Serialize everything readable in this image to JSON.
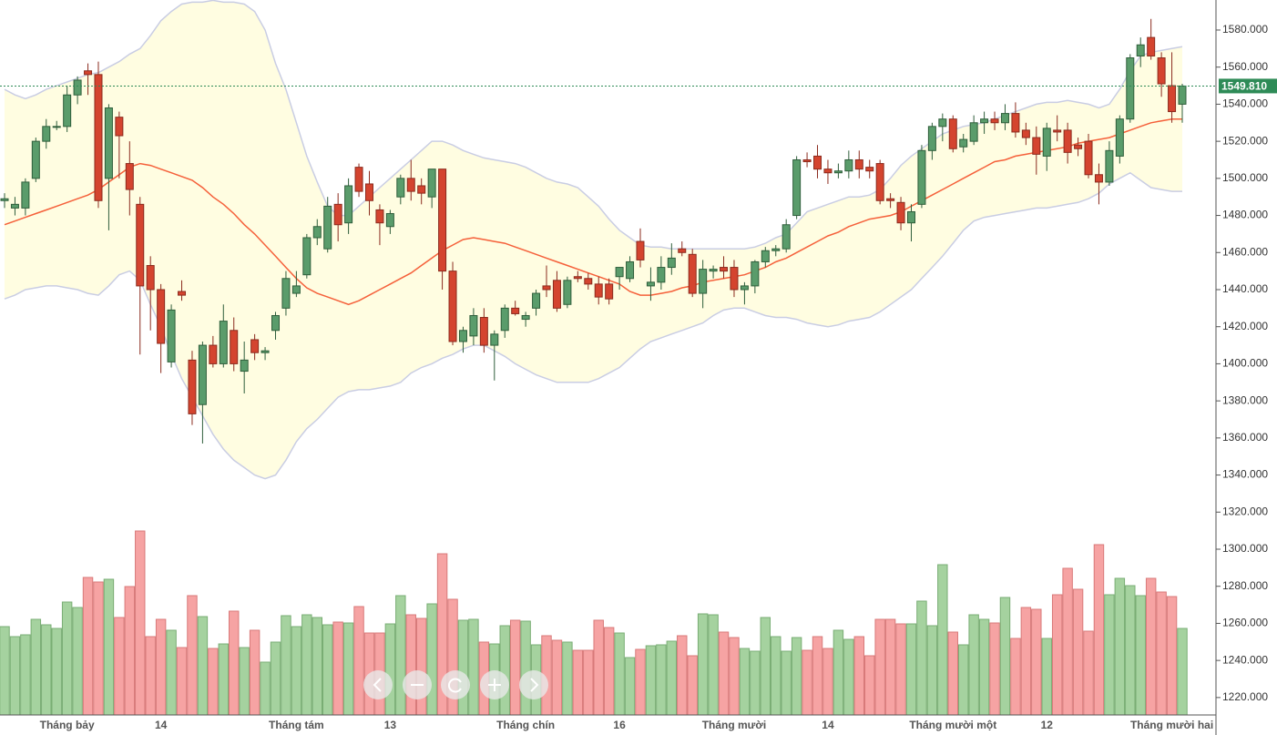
{
  "chart_data": {
    "type": "candlestick",
    "categories": [
      null,
      null,
      null,
      null,
      null,
      null,
      "Tháng bảy",
      null,
      null,
      null,
      null,
      null,
      null,
      null,
      null,
      "14",
      null,
      null,
      null,
      null,
      null,
      null,
      null,
      null,
      null,
      null,
      null,
      null,
      "Tháng tám",
      null,
      null,
      null,
      null,
      null,
      null,
      null,
      null,
      "13",
      null,
      null,
      null,
      null,
      null,
      null,
      null,
      null,
      null,
      null,
      null,
      null,
      "Tháng chín",
      null,
      null,
      null,
      null,
      null,
      null,
      null,
      null,
      "16",
      null,
      null,
      null,
      null,
      null,
      null,
      null,
      null,
      null,
      null,
      "Tháng mười",
      null,
      null,
      null,
      null,
      null,
      null,
      null,
      null,
      "14",
      null,
      null,
      null,
      null,
      null,
      null,
      null,
      null,
      null,
      null,
      null,
      "Tháng mười một",
      null,
      null,
      null,
      null,
      null,
      null,
      null,
      null,
      "12",
      null,
      null,
      null,
      null,
      null,
      null,
      null,
      null,
      null,
      null,
      null,
      "Tháng mười hai",
      null
    ],
    "open": [
      1488,
      1484,
      1484,
      1500,
      1520,
      1528,
      1528,
      1545,
      1558,
      1556,
      1500,
      1533,
      1508,
      1486,
      1453,
      1440,
      1401,
      1439,
      1402,
      1378,
      1410,
      1400,
      1418,
      1396,
      1413,
      1406,
      1418,
      1430,
      1438,
      1448,
      1468,
      1462,
      1486,
      1476,
      1506,
      1497,
      1483,
      1474,
      1490,
      1500,
      1496,
      1490,
      1505,
      1450,
      1412,
      1415,
      1425,
      1410,
      1418,
      1430,
      1424,
      1430,
      1442,
      1445,
      1432,
      1447,
      1446,
      1443,
      1443,
      1447,
      1446,
      1466,
      1442,
      1444,
      1452,
      1462,
      1459,
      1438,
      1450,
      1452,
      1452,
      1440,
      1442,
      1455,
      1461,
      1462,
      1480,
      1510,
      1512,
      1505,
      1503,
      1504,
      1510,
      1506,
      1508,
      1489,
      1487,
      1476,
      1486,
      1515,
      1528,
      1532,
      1517,
      1520,
      1530,
      1532,
      1530,
      1535,
      1526,
      1522,
      1512,
      1526,
      1526,
      1518,
      1520,
      1502,
      1498,
      1512,
      1532,
      1566,
      1576,
      1565,
      1550,
      1540
    ],
    "high": [
      1492,
      1490,
      1500,
      1522,
      1532,
      1531,
      1550,
      1555,
      1562,
      1563,
      1540,
      1536,
      1520,
      1490,
      1458,
      1443,
      1432,
      1445,
      1407,
      1412,
      1415,
      1432,
      1425,
      1412,
      1416,
      1409,
      1428,
      1450,
      1450,
      1470,
      1478,
      1490,
      1492,
      1500,
      1508,
      1504,
      1486,
      1483,
      1502,
      1510,
      1500,
      1505,
      1505,
      1455,
      1420,
      1430,
      1430,
      1418,
      1432,
      1434,
      1428,
      1440,
      1453,
      1450,
      1447,
      1450,
      1449,
      1447,
      1446,
      1452,
      1458,
      1473,
      1452,
      1458,
      1465,
      1466,
      1462,
      1456,
      1453,
      1458,
      1456,
      1444,
      1456,
      1463,
      1464,
      1478,
      1512,
      1514,
      1518,
      1510,
      1508,
      1515,
      1515,
      1510,
      1510,
      1492,
      1490,
      1486,
      1518,
      1530,
      1535,
      1534,
      1524,
      1534,
      1536,
      1536,
      1540,
      1541,
      1530,
      1528,
      1530,
      1534,
      1530,
      1522,
      1524,
      1508,
      1520,
      1534,
      1567,
      1576,
      1586,
      1568,
      1568,
      1551
    ],
    "low": [
      1484,
      1480,
      1480,
      1498,
      1516,
      1526,
      1525,
      1540,
      1545,
      1484,
      1472,
      1500,
      1480,
      1405,
      1418,
      1395,
      1398,
      1434,
      1367,
      1357,
      1398,
      1398,
      1396,
      1384,
      1402,
      1402,
      1413,
      1426,
      1436,
      1446,
      1464,
      1460,
      1466,
      1470,
      1490,
      1480,
      1464,
      1470,
      1486,
      1488,
      1486,
      1484,
      1440,
      1410,
      1406,
      1410,
      1406,
      1391,
      1414,
      1426,
      1420,
      1426,
      1436,
      1428,
      1430,
      1444,
      1440,
      1432,
      1432,
      1440,
      1444,
      1452,
      1434,
      1440,
      1448,
      1458,
      1436,
      1430,
      1446,
      1446,
      1436,
      1432,
      1438,
      1452,
      1458,
      1460,
      1478,
      1506,
      1500,
      1497,
      1500,
      1500,
      1500,
      1500,
      1486,
      1484,
      1472,
      1466,
      1484,
      1510,
      1520,
      1514,
      1514,
      1518,
      1524,
      1526,
      1526,
      1522,
      1518,
      1502,
      1504,
      1520,
      1508,
      1512,
      1500,
      1486,
      1496,
      1508,
      1530,
      1560,
      1564,
      1544,
      1530,
      1530
    ],
    "close": [
      1489,
      1486,
      1498,
      1520,
      1528,
      1528,
      1545,
      1553,
      1556,
      1488,
      1538,
      1523,
      1494,
      1442,
      1440,
      1411,
      1429,
      1437,
      1373,
      1410,
      1400,
      1423,
      1400,
      1402,
      1406,
      1407,
      1426,
      1446,
      1442,
      1468,
      1474,
      1485,
      1475,
      1496,
      1493,
      1488,
      1476,
      1481,
      1500,
      1493,
      1492,
      1505,
      1450,
      1412,
      1418,
      1426,
      1410,
      1416,
      1430,
      1427,
      1426,
      1438,
      1440,
      1430,
      1445,
      1446,
      1443,
      1436,
      1435,
      1452,
      1455,
      1456,
      1444,
      1452,
      1457,
      1460,
      1438,
      1451,
      1451,
      1450,
      1440,
      1442,
      1455,
      1461,
      1462,
      1475,
      1510,
      1509,
      1505,
      1503,
      1504,
      1510,
      1505,
      1504,
      1488,
      1488,
      1476,
      1482,
      1515,
      1528,
      1532,
      1516,
      1521,
      1530,
      1532,
      1530,
      1535,
      1525,
      1522,
      1513,
      1527,
      1525,
      1514,
      1516,
      1502,
      1498,
      1515,
      1532,
      1565,
      1572,
      1566,
      1551,
      1536,
      1549.81
    ],
    "bands": {
      "upper": [
        1548,
        1545,
        1543,
        1545,
        1548,
        1550,
        1552,
        1554,
        1556,
        1557,
        1560,
        1563,
        1567,
        1570,
        1577,
        1585,
        1590,
        1594,
        1595,
        1595,
        1596,
        1595,
        1595,
        1594,
        1590,
        1580,
        1562,
        1548,
        1530,
        1512,
        1498,
        1485,
        1480,
        1480,
        1485,
        1490,
        1495,
        1500,
        1505,
        1510,
        1515,
        1520,
        1520,
        1518,
        1515,
        1513,
        1511,
        1510,
        1509,
        1508,
        1506,
        1503,
        1500,
        1498,
        1497,
        1495,
        1490,
        1485,
        1478,
        1472,
        1468,
        1464,
        1463,
        1463,
        1462,
        1462,
        1462,
        1462,
        1462,
        1462,
        1462,
        1462,
        1463,
        1465,
        1468,
        1470,
        1476,
        1482,
        1484,
        1486,
        1488,
        1490,
        1490,
        1491,
        1494,
        1500,
        1507,
        1512,
        1516,
        1520,
        1524,
        1526,
        1528,
        1529,
        1530,
        1532,
        1534,
        1536,
        1538,
        1540,
        1541,
        1541,
        1542,
        1541,
        1540,
        1538,
        1540,
        1548,
        1558,
        1566,
        1568,
        1569,
        1570,
        1571
      ],
      "middle": [
        1475,
        1477,
        1479,
        1481,
        1483,
        1485,
        1487,
        1489,
        1491,
        1494,
        1498,
        1502,
        1506,
        1508,
        1507,
        1505,
        1503,
        1501,
        1499,
        1495,
        1490,
        1486,
        1481,
        1475,
        1470,
        1464,
        1458,
        1452,
        1446,
        1441,
        1438,
        1436,
        1434,
        1432,
        1434,
        1437,
        1440,
        1443,
        1446,
        1449,
        1453,
        1457,
        1461,
        1464,
        1467,
        1468,
        1467,
        1466,
        1465,
        1463,
        1461,
        1459,
        1457,
        1455,
        1453,
        1451,
        1449,
        1447,
        1445,
        1443,
        1439,
        1437,
        1437,
        1438,
        1439,
        1441,
        1442,
        1444,
        1445,
        1446,
        1447,
        1448,
        1450,
        1452,
        1455,
        1457,
        1460,
        1463,
        1466,
        1469,
        1471,
        1474,
        1476,
        1478,
        1479,
        1480,
        1482,
        1485,
        1488,
        1491,
        1494,
        1497,
        1500,
        1503,
        1506,
        1509,
        1510,
        1512,
        1513,
        1514,
        1515,
        1516,
        1517,
        1519,
        1520,
        1521,
        1522,
        1524,
        1526,
        1528,
        1530,
        1531,
        1532,
        1532
      ],
      "lower": [
        1435,
        1437,
        1440,
        1441,
        1442,
        1442,
        1441,
        1440,
        1438,
        1437,
        1442,
        1448,
        1450,
        1445,
        1432,
        1420,
        1405,
        1392,
        1382,
        1372,
        1362,
        1354,
        1348,
        1344,
        1340,
        1338,
        1340,
        1348,
        1358,
        1365,
        1370,
        1376,
        1382,
        1385,
        1386,
        1386,
        1387,
        1388,
        1390,
        1395,
        1398,
        1400,
        1403,
        1405,
        1408,
        1410,
        1410,
        1407,
        1404,
        1400,
        1397,
        1394,
        1392,
        1390,
        1390,
        1390,
        1390,
        1392,
        1395,
        1398,
        1403,
        1408,
        1412,
        1414,
        1416,
        1418,
        1420,
        1422,
        1426,
        1429,
        1430,
        1430,
        1428,
        1426,
        1425,
        1425,
        1424,
        1422,
        1421,
        1420,
        1421,
        1423,
        1424,
        1425,
        1428,
        1432,
        1436,
        1440,
        1446,
        1452,
        1458,
        1465,
        1472,
        1477,
        1479,
        1480,
        1481,
        1482,
        1483,
        1484,
        1484,
        1485,
        1486,
        1487,
        1489,
        1492,
        1497,
        1500,
        1503,
        1499,
        1495,
        1494,
        1493,
        1493
      ]
    },
    "volume": {
      "values": [
        97,
        86,
        88,
        105,
        99,
        95,
        124,
        118,
        151,
        146,
        149,
        107,
        141,
        202,
        86,
        105,
        93,
        74,
        131,
        108,
        73,
        78,
        114,
        74,
        93,
        58,
        80,
        109,
        97,
        110,
        107,
        99,
        102,
        101,
        119,
        90,
        90,
        100,
        131,
        110,
        106,
        122,
        177,
        127,
        104,
        105,
        80,
        78,
        98,
        104,
        103,
        77,
        87,
        82,
        80,
        71,
        71,
        104,
        96,
        90,
        63,
        72,
        76,
        77,
        81,
        87,
        65,
        111,
        110,
        91,
        85,
        73,
        70,
        107,
        86,
        70,
        85,
        71,
        86,
        73,
        93,
        83,
        86,
        65,
        105,
        105,
        100,
        100,
        125,
        98,
        165,
        91,
        77,
        110,
        105,
        101,
        129,
        84,
        118,
        116,
        84,
        132,
        161,
        138,
        92,
        187,
        132,
        150,
        142,
        131,
        150,
        135,
        130,
        95
      ],
      "lim": [
        0,
        785
      ]
    },
    "ylim": [
      1210.6,
      1596.2
    ],
    "yticks": [
      {
        "value": 1220,
        "label": "1220.000"
      },
      {
        "value": 1240,
        "label": "1240.000"
      },
      {
        "value": 1260,
        "label": "1260.000"
      },
      {
        "value": 1280,
        "label": "1280.000"
      },
      {
        "value": 1300,
        "label": "1300.000"
      },
      {
        "value": 1320,
        "label": "1320.000"
      },
      {
        "value": 1340,
        "label": "1340.000"
      },
      {
        "value": 1360,
        "label": "1360.000"
      },
      {
        "value": 1380,
        "label": "1380.000"
      },
      {
        "value": 1400,
        "label": "1400.000"
      },
      {
        "value": 1420,
        "label": "1420.000"
      },
      {
        "value": 1440,
        "label": "1440.000"
      },
      {
        "value": 1460,
        "label": "1460.000"
      },
      {
        "value": 1480,
        "label": "1480.000"
      },
      {
        "value": 1500,
        "label": "1500.000"
      },
      {
        "value": 1520,
        "label": "1520.000"
      },
      {
        "value": 1540,
        "label": "1540.000"
      },
      {
        "value": 1560,
        "label": "1560.000"
      },
      {
        "value": 1580,
        "label": "1580.000"
      }
    ],
    "last_price": {
      "value": 1549.81,
      "label": "1549.810"
    },
    "colors": {
      "up": "#5a9c6b",
      "up_border": "#2f5e3b",
      "down": "#d4442f",
      "down_border": "#8b2b1e",
      "volume_up": "#a5d29f",
      "volume_up_border": "#79ad74",
      "volume_down": "#f6a3a3",
      "volume_down_border": "#d87a7a",
      "band_fill": "#fffde1",
      "band_line": "#c9cde3",
      "middle": "#f5603a",
      "price_line": "#2e8b57"
    }
  }
}
